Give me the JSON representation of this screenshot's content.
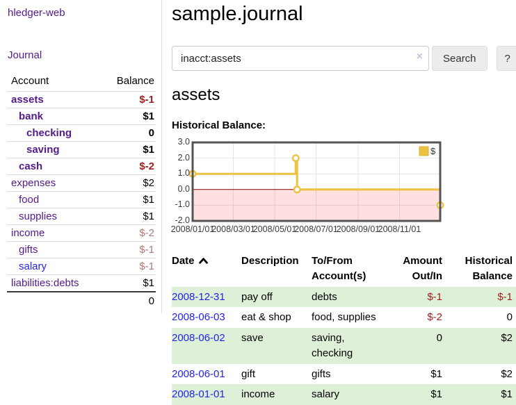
{
  "app": {
    "title": "hledger-web"
  },
  "colors": {
    "link_purple": "#551a8b",
    "link_blue": "#2323e8",
    "negative_strong": "#9e2020",
    "negative_soft": "#b4777a",
    "row_highlight": "#dff0d8",
    "chart_line": "#EDC240"
  },
  "sidebar": {
    "nav": {
      "journal_label": "Journal"
    },
    "accounts_table": {
      "headers": {
        "account": "Account",
        "balance": "Balance"
      },
      "rows": [
        {
          "name": "assets",
          "indent": 0,
          "bold": true,
          "link_color": "purple",
          "balance": "$-1",
          "balance_class": "negative"
        },
        {
          "name": "bank",
          "indent": 1,
          "bold": true,
          "link_color": "purple",
          "balance": "$1",
          "balance_class": ""
        },
        {
          "name": "checking",
          "indent": 2,
          "bold": true,
          "link_color": "purple",
          "balance": "0",
          "balance_class": ""
        },
        {
          "name": "saving",
          "indent": 2,
          "bold": true,
          "link_color": "purple",
          "balance": "$1",
          "balance_class": ""
        },
        {
          "name": "cash",
          "indent": 1,
          "bold": true,
          "link_color": "purple",
          "balance": "$-2",
          "balance_class": "negative"
        },
        {
          "name": "expenses",
          "indent": 0,
          "bold": false,
          "link_color": "purple",
          "balance": "$2",
          "balance_class": ""
        },
        {
          "name": "food",
          "indent": 1,
          "bold": false,
          "link_color": "purple",
          "balance": "$1",
          "balance_class": ""
        },
        {
          "name": "supplies",
          "indent": 1,
          "bold": false,
          "link_color": "purple",
          "balance": "$1",
          "balance_class": ""
        },
        {
          "name": "income",
          "indent": 0,
          "bold": false,
          "link_color": "purple",
          "balance": "$-2",
          "balance_class": "negative-soft"
        },
        {
          "name": "gifts",
          "indent": 1,
          "bold": false,
          "link_color": "purple",
          "balance": "$-1",
          "balance_class": "negative-soft"
        },
        {
          "name": "salary",
          "indent": 1,
          "bold": false,
          "link_color": "blue",
          "balance": "$-1",
          "balance_class": "negative-soft"
        },
        {
          "name": "liabilities:debts",
          "indent": 0,
          "bold": false,
          "link_color": "purple",
          "balance": "$1",
          "balance_class": ""
        }
      ],
      "total": "0"
    }
  },
  "header": {
    "title": "sample.journal"
  },
  "search": {
    "query": "inacct:assets",
    "clear_icon": "×",
    "search_button": "Search",
    "help_button": "?"
  },
  "account_page": {
    "heading": "assets",
    "chart_label": "Historical Balance:"
  },
  "chart_data": {
    "type": "line",
    "title": "Historical Balance",
    "series": [
      {
        "name": "$",
        "color": "#EDC240",
        "step": true,
        "points": [
          [
            "2008-01-01",
            1
          ],
          [
            "2008-06-01",
            2
          ],
          [
            "2008-06-03",
            0
          ],
          [
            "2008-12-31",
            -1
          ]
        ]
      }
    ],
    "x_range": [
      "2008-01-01",
      "2008-12-31"
    ],
    "y_range": [
      -2,
      3
    ],
    "y_ticks": [
      3,
      2,
      1,
      0,
      -1,
      -2
    ],
    "y_tick_labels": [
      "3.0",
      "2.0",
      "1.0",
      "0.0",
      "-1.0",
      "-2.0"
    ],
    "x_ticks": [
      "2008-01-01",
      "2008-03-01",
      "2008-05-01",
      "2008-07-01",
      "2008-09-01",
      "2008-11-01"
    ],
    "x_tick_labels": [
      "2008/01/01",
      "2008/03/01",
      "2008/05/01",
      "2008/07/01",
      "2008/09/01",
      "2008/11/01"
    ],
    "negative_region_color": "rgba(255,0,0,0.12)",
    "zero_line_color": "#8b0000",
    "grid": true,
    "legend_position": "top-right"
  },
  "register_table": {
    "headers": [
      {
        "key": "date",
        "label": "Date",
        "align": "left",
        "sort": "asc"
      },
      {
        "key": "description",
        "label": "Description",
        "align": "left"
      },
      {
        "key": "accounts",
        "label": "To/From\nAccount(s)",
        "align": "left"
      },
      {
        "key": "amount",
        "label": "Amount\nOut/In",
        "align": "right"
      },
      {
        "key": "balance",
        "label": "Historical\nBalance",
        "align": "right"
      }
    ],
    "rows": [
      {
        "date": "2008-12-31",
        "description": "pay off",
        "accounts": "debts",
        "amount": "$-1",
        "amount_negative": true,
        "balance": "$-1",
        "balance_negative": true,
        "highlighted": true
      },
      {
        "date": "2008-06-03",
        "description": "eat & shop",
        "accounts": "food, supplies",
        "amount": "$-2",
        "amount_negative": true,
        "balance": "0",
        "balance_negative": false,
        "highlighted": false
      },
      {
        "date": "2008-06-02",
        "description": "save",
        "accounts": "saving, checking",
        "amount": "0",
        "amount_negative": false,
        "balance": "$2",
        "balance_negative": false,
        "highlighted": true
      },
      {
        "date": "2008-06-01",
        "description": "gift",
        "accounts": "gifts",
        "amount": "$1",
        "amount_negative": false,
        "balance": "$2",
        "balance_negative": false,
        "highlighted": false
      },
      {
        "date": "2008-01-01",
        "description": "income",
        "accounts": "salary",
        "amount": "$1",
        "amount_negative": false,
        "balance": "$1",
        "balance_negative": false,
        "highlighted": true
      }
    ]
  }
}
